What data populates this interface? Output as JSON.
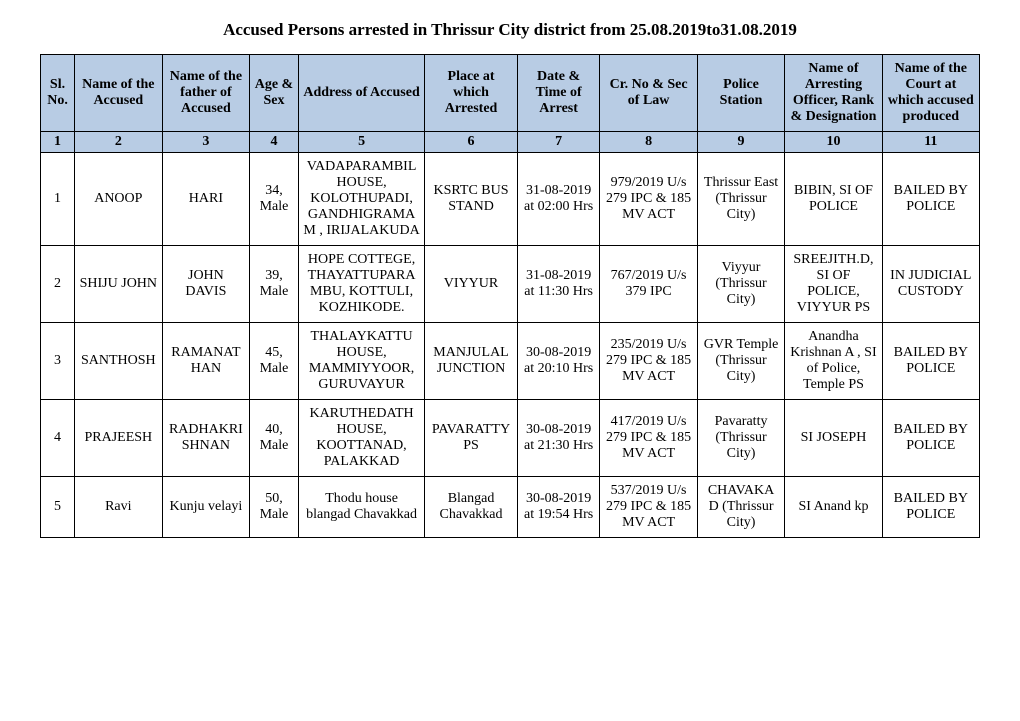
{
  "title": "Accused Persons arrested in   Thrissur City  district from  25.08.2019to31.08.2019",
  "columns": [
    "Sl. No.",
    "Name of the Accused",
    "Name of the father of Accused",
    "Age & Sex",
    "Address of Accused",
    "Place at which Arrested",
    "Date & Time of Arrest",
    "Cr. No & Sec of Law",
    "Police Station",
    "Name of Arresting Officer, Rank & Designation",
    "Name of the Court at which accused produced"
  ],
  "col_numbers": [
    "1",
    "2",
    "3",
    "4",
    "5",
    "6",
    "7",
    "8",
    "9",
    "10",
    "11"
  ],
  "rows": [
    {
      "sl": "1",
      "name": "ANOOP",
      "father": "HARI",
      "age": "34, Male",
      "address": "VADAPARAMBIL HOUSE, KOLOTHUPADI, GANDHIGRAMAM , IRIJALAKUDA",
      "place": "KSRTC BUS STAND",
      "datetime": "31-08-2019 at 02:00 Hrs",
      "crno": "979/2019 U/s 279 IPC & 185 MV ACT",
      "ps": "Thrissur East (Thrissur City)",
      "officer": "BIBIN, SI OF POLICE",
      "court": "BAILED BY POLICE"
    },
    {
      "sl": "2",
      "name": "SHIJU JOHN",
      "father": "JOHN DAVIS",
      "age": "39, Male",
      "address": "HOPE COTTEGE, THAYATTUPARA MBU, KOTTULI, KOZHIKODE.",
      "place": "VIYYUR",
      "datetime": "31-08-2019 at 11:30 Hrs",
      "crno": "767/2019 U/s 379 IPC",
      "ps": "Viyyur (Thrissur City)",
      "officer": "SREEJITH.D, SI OF POLICE, VIYYUR PS",
      "court": "IN JUDICIAL CUSTODY"
    },
    {
      "sl": "3",
      "name": "SANTHOSH",
      "father": "RAMANAT HAN",
      "age": "45, Male",
      "address": "THALAYKATTU HOUSE, MAMMIYYOOR, GURUVAYUR",
      "place": "MANJULAL JUNCTION",
      "datetime": "30-08-2019 at 20:10 Hrs",
      "crno": "235/2019 U/s 279 IPC & 185 MV ACT",
      "ps": "GVR Temple (Thrissur City)",
      "officer": "Anandha Krishnan A , SI of Police, Temple PS",
      "court": "BAILED BY POLICE"
    },
    {
      "sl": "4",
      "name": "PRAJEESH",
      "father": "RADHAKRI SHNAN",
      "age": "40, Male",
      "address": "KARUTHEDATH HOUSE, KOOTTANAD, PALAKKAD",
      "place": "PAVARATTY PS",
      "datetime": "30-08-2019 at 21:30 Hrs",
      "crno": "417/2019 U/s 279 IPC & 185 MV ACT",
      "ps": "Pavaratty (Thrissur City)",
      "officer": "SI JOSEPH",
      "court": "BAILED BY POLICE"
    },
    {
      "sl": "5",
      "name": "Ravi",
      "father": "Kunju velayi",
      "age": "50, Male",
      "address": "Thodu house blangad Chavakkad",
      "place": "Blangad Chavakkad",
      "datetime": "30-08-2019 at 19:54 Hrs",
      "crno": "537/2019 U/s 279 IPC & 185 MV ACT",
      "ps": "CHAVAKA D (Thrissur City)",
      "officer": "SI Anand kp",
      "court": "BAILED BY POLICE"
    }
  ],
  "style": {
    "header_bg": "#b8cce4",
    "border_color": "#000000",
    "page_bg": "#ffffff",
    "font_family": "Times New Roman",
    "title_fontsize": 17,
    "cell_fontsize": 14
  }
}
